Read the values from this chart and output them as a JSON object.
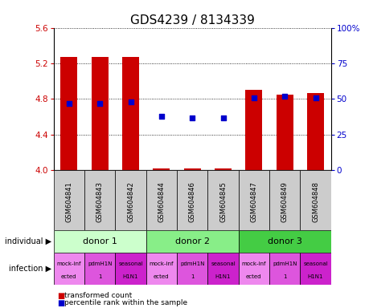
{
  "title": "GDS4239 / 8134339",
  "samples": [
    "GSM604841",
    "GSM604843",
    "GSM604842",
    "GSM604844",
    "GSM604846",
    "GSM604845",
    "GSM604847",
    "GSM604849",
    "GSM604848"
  ],
  "transformed_count": [
    5.27,
    5.27,
    5.27,
    4.02,
    4.02,
    4.02,
    4.9,
    4.85,
    4.87
  ],
  "percentile_rank": [
    47,
    47,
    48,
    38,
    37,
    37,
    51,
    52,
    51
  ],
  "ylim": [
    4.0,
    5.6
  ],
  "yticks": [
    4.0,
    4.4,
    4.8,
    5.2,
    5.6
  ],
  "y2lim": [
    0,
    100
  ],
  "y2ticks": [
    0,
    25,
    50,
    75,
    100
  ],
  "donors": [
    {
      "label": "donor 1",
      "start": 0,
      "end": 3,
      "color": "#ccffcc"
    },
    {
      "label": "donor 2",
      "start": 3,
      "end": 6,
      "color": "#88ee88"
    },
    {
      "label": "donor 3",
      "start": 6,
      "end": 9,
      "color": "#44cc44"
    }
  ],
  "infection_colors": [
    "#ee88ee",
    "#dd55dd",
    "#cc22cc"
  ],
  "infection_labels_line1": [
    "mock-inf",
    "pdmH1N",
    "seasonal",
    "mock-inf",
    "pdmH1N",
    "seasonal",
    "mock-inf",
    "pdmH1N",
    "seasonal"
  ],
  "infection_labels_line2": [
    "ected",
    "1",
    "H1N1",
    "ected",
    "1",
    "H1N1",
    "ected",
    "1",
    "H1N1"
  ],
  "bar_color": "#cc0000",
  "dot_color": "#0000cc",
  "label_individual": "individual",
  "label_infection": "infection",
  "legend_red": "transformed count",
  "legend_blue": "percentile rank within the sample",
  "bar_width": 0.55,
  "title_fontsize": 11,
  "tick_fontsize": 7.5,
  "sample_fontsize": 6,
  "donor_fontsize": 8,
  "infection_fontsize": 5,
  "rowlabel_fontsize": 7,
  "legend_fontsize": 6.5,
  "axis_label_color_left": "#cc0000",
  "axis_label_color_right": "#0000cc",
  "plot_bg": "#ffffff",
  "sample_bg": "#cccccc"
}
